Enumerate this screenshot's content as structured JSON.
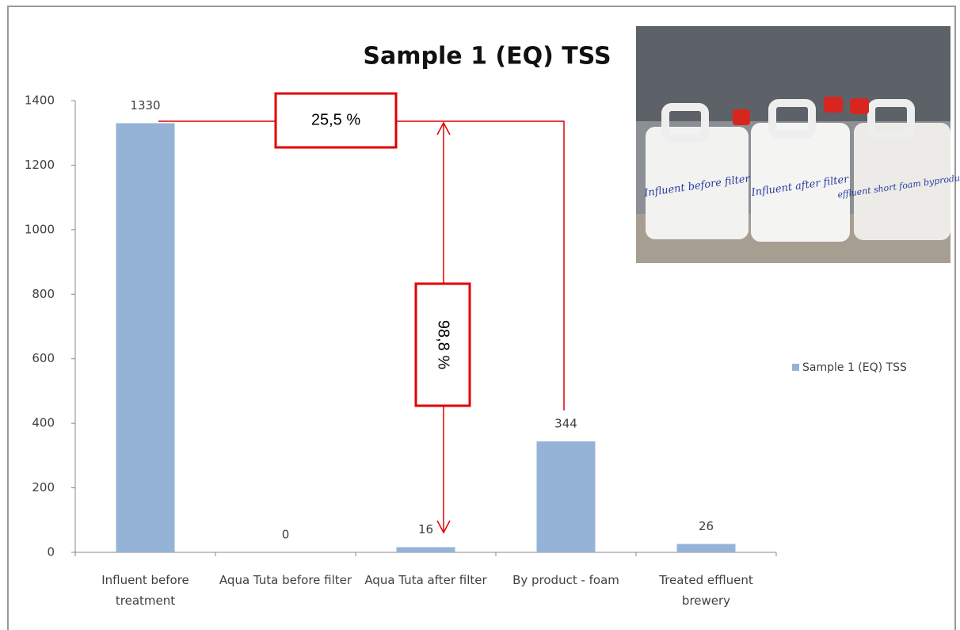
{
  "chart_data": {
    "type": "bar",
    "title": "Sample 1 (EQ) TSS",
    "categories": [
      "Influent  before treatment",
      "Aqua Tuta before filter",
      "Aqua Tuta after filter",
      "By product - foam",
      "Treated effluent brewery"
    ],
    "series": [
      {
        "name": "Sample 1 (EQ) TSS",
        "color": "#95b3d7",
        "values": [
          1330,
          0,
          16,
          344,
          26
        ]
      }
    ],
    "ylim": [
      0,
      1400
    ],
    "yticks": [
      0,
      200,
      400,
      600,
      800,
      1000,
      1200,
      1400
    ],
    "legend": "right",
    "annotations": [
      {
        "text": "25,5 %"
      },
      {
        "text": "98,8 %"
      }
    ]
  },
  "photo": {
    "labels": [
      "Influent before filter",
      "Influent after filter",
      "effluent short foam byproduct"
    ]
  }
}
